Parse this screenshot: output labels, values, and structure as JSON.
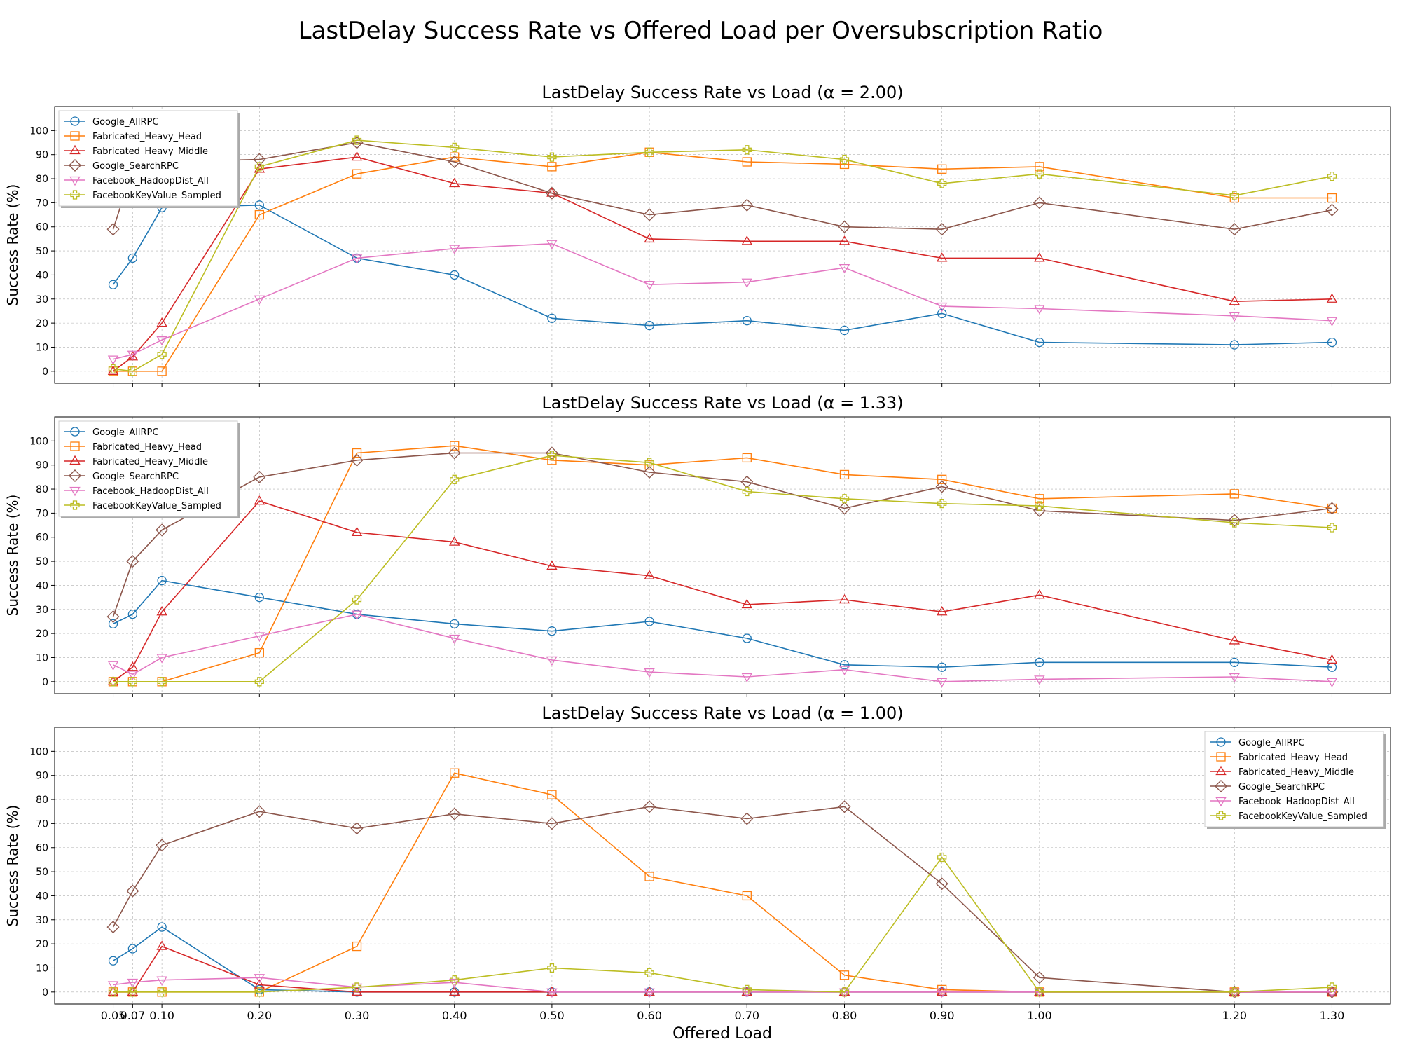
{
  "figure": {
    "title": "LastDelay Success Rate vs Offered Load per Oversubscription Ratio",
    "xlabel": "Offered Load"
  },
  "chart_data": [
    {
      "type": "line",
      "title": "LastDelay Success Rate vs Load (α = 2.00)",
      "xlabel": "",
      "ylabel": "Success Rate (%)",
      "legend_position": "upper-left",
      "grid": true,
      "x": [
        0.05,
        0.07,
        0.1,
        0.2,
        0.3,
        0.4,
        0.5,
        0.6,
        0.7,
        0.8,
        0.9,
        1.0,
        1.2,
        1.3
      ],
      "x_tick_labels": [
        "0.05",
        "0.07",
        "0.10",
        "0.20",
        "0.30",
        "0.40",
        "0.50",
        "0.60",
        "0.70",
        "0.80",
        "0.90",
        "1.00",
        "1.20",
        "1.30"
      ],
      "xlim": [
        -0.01,
        1.36
      ],
      "ylim": [
        -5,
        110
      ],
      "y_ticks": [
        0,
        10,
        20,
        30,
        40,
        50,
        60,
        70,
        80,
        90,
        100
      ],
      "series": [
        {
          "name": "Google_AllRPC",
          "color": "#1f77b4",
          "marker": "circle",
          "values": [
            36,
            47,
            68,
            69,
            47,
            40,
            22,
            19,
            21,
            17,
            24,
            12,
            11,
            12
          ]
        },
        {
          "name": "Fabricated_Heavy_Head",
          "color": "#ff7f0e",
          "marker": "square",
          "values": [
            0,
            0,
            0,
            65,
            82,
            89,
            85,
            91,
            87,
            86,
            84,
            85,
            72,
            72
          ]
        },
        {
          "name": "Fabricated_Heavy_Middle",
          "color": "#d62728",
          "marker": "triangle-up",
          "values": [
            0,
            6,
            20,
            84,
            89,
            78,
            74,
            55,
            54,
            54,
            47,
            47,
            29,
            30
          ]
        },
        {
          "name": "Google_SearchRPC",
          "color": "#8c564b",
          "marker": "diamond",
          "values": [
            59,
            84,
            87,
            88,
            95,
            87,
            74,
            65,
            69,
            60,
            59,
            70,
            59,
            67
          ]
        },
        {
          "name": "Facebook_HadoopDist_All",
          "color": "#e377c2",
          "marker": "triangle-down",
          "values": [
            5,
            7,
            13,
            30,
            47,
            51,
            53,
            36,
            37,
            43,
            27,
            26,
            23,
            21
          ]
        },
        {
          "name": "FacebookKeyValue_Sampled",
          "color": "#bcbd22",
          "marker": "plus",
          "values": [
            1,
            0,
            7,
            85,
            96,
            93,
            89,
            91,
            92,
            88,
            78,
            82,
            73,
            81
          ]
        }
      ]
    },
    {
      "type": "line",
      "title": "LastDelay Success Rate vs Load (α = 1.33)",
      "xlabel": "",
      "ylabel": "Success Rate (%)",
      "legend_position": "upper-left",
      "grid": true,
      "x": [
        0.05,
        0.07,
        0.1,
        0.2,
        0.3,
        0.4,
        0.5,
        0.6,
        0.7,
        0.8,
        0.9,
        1.0,
        1.2,
        1.3
      ],
      "x_tick_labels": [
        "0.05",
        "0.07",
        "0.10",
        "0.20",
        "0.30",
        "0.40",
        "0.50",
        "0.60",
        "0.70",
        "0.80",
        "0.90",
        "1.00",
        "1.20",
        "1.30"
      ],
      "xlim": [
        -0.01,
        1.36
      ],
      "ylim": [
        -5,
        110
      ],
      "y_ticks": [
        0,
        10,
        20,
        30,
        40,
        50,
        60,
        70,
        80,
        90,
        100
      ],
      "series": [
        {
          "name": "Google_AllRPC",
          "color": "#1f77b4",
          "marker": "circle",
          "values": [
            24,
            28,
            42,
            35,
            28,
            24,
            21,
            25,
            18,
            7,
            6,
            8,
            8,
            6
          ]
        },
        {
          "name": "Fabricated_Heavy_Head",
          "color": "#ff7f0e",
          "marker": "square",
          "values": [
            0,
            0,
            0,
            12,
            95,
            98,
            92,
            90,
            93,
            86,
            84,
            76,
            78,
            72
          ]
        },
        {
          "name": "Fabricated_Heavy_Middle",
          "color": "#d62728",
          "marker": "triangle-up",
          "values": [
            0,
            6,
            29,
            75,
            62,
            58,
            48,
            44,
            32,
            34,
            29,
            36,
            17,
            9
          ]
        },
        {
          "name": "Google_SearchRPC",
          "color": "#8c564b",
          "marker": "diamond",
          "values": [
            27,
            50,
            63,
            85,
            92,
            95,
            95,
            87,
            83,
            72,
            81,
            71,
            67,
            72
          ]
        },
        {
          "name": "Facebook_HadoopDist_All",
          "color": "#e377c2",
          "marker": "triangle-down",
          "values": [
            7,
            3,
            10,
            19,
            28,
            18,
            9,
            4,
            2,
            5,
            0,
            1,
            2,
            0
          ]
        },
        {
          "name": "FacebookKeyValue_Sampled",
          "color": "#bcbd22",
          "marker": "plus",
          "values": [
            0,
            0,
            0,
            0,
            34,
            84,
            94,
            91,
            79,
            76,
            74,
            73,
            66,
            64
          ]
        }
      ]
    },
    {
      "type": "line",
      "title": "LastDelay Success Rate vs Load (α = 1.00)",
      "xlabel": "Offered Load",
      "ylabel": "Success Rate (%)",
      "legend_position": "upper-right",
      "grid": true,
      "x": [
        0.05,
        0.07,
        0.1,
        0.2,
        0.3,
        0.4,
        0.5,
        0.6,
        0.7,
        0.8,
        0.9,
        1.0,
        1.2,
        1.3
      ],
      "x_tick_labels": [
        "0.05",
        "0.07",
        "0.10",
        "0.20",
        "0.30",
        "0.40",
        "0.50",
        "0.60",
        "0.70",
        "0.80",
        "0.90",
        "1.00",
        "1.20",
        "1.30"
      ],
      "xlim": [
        -0.01,
        1.36
      ],
      "ylim": [
        -5,
        110
      ],
      "y_ticks": [
        0,
        10,
        20,
        30,
        40,
        50,
        60,
        70,
        80,
        90,
        100
      ],
      "series": [
        {
          "name": "Google_AllRPC",
          "color": "#1f77b4",
          "marker": "circle",
          "values": [
            13,
            18,
            27,
            1,
            0,
            0,
            0,
            0,
            0,
            0,
            0,
            0,
            0,
            0
          ]
        },
        {
          "name": "Fabricated_Heavy_Head",
          "color": "#ff7f0e",
          "marker": "square",
          "values": [
            0,
            0,
            0,
            0,
            19,
            91,
            82,
            48,
            40,
            7,
            1,
            0,
            0,
            0
          ]
        },
        {
          "name": "Fabricated_Heavy_Middle",
          "color": "#d62728",
          "marker": "triangle-up",
          "values": [
            0,
            0,
            19,
            3,
            0,
            0,
            0,
            0,
            0,
            0,
            0,
            0,
            0,
            0
          ]
        },
        {
          "name": "Google_SearchRPC",
          "color": "#8c564b",
          "marker": "diamond",
          "values": [
            27,
            42,
            61,
            75,
            68,
            74,
            70,
            77,
            72,
            77,
            45,
            6,
            0,
            0
          ]
        },
        {
          "name": "Facebook_HadoopDist_All",
          "color": "#e377c2",
          "marker": "triangle-down",
          "values": [
            3,
            4,
            5,
            6,
            2,
            4,
            0,
            0,
            0,
            0,
            0,
            0,
            0,
            0
          ]
        },
        {
          "name": "FacebookKeyValue_Sampled",
          "color": "#bcbd22",
          "marker": "plus",
          "values": [
            0,
            0,
            0,
            0,
            2,
            5,
            10,
            8,
            1,
            0,
            56,
            0,
            0,
            2
          ]
        }
      ]
    }
  ]
}
